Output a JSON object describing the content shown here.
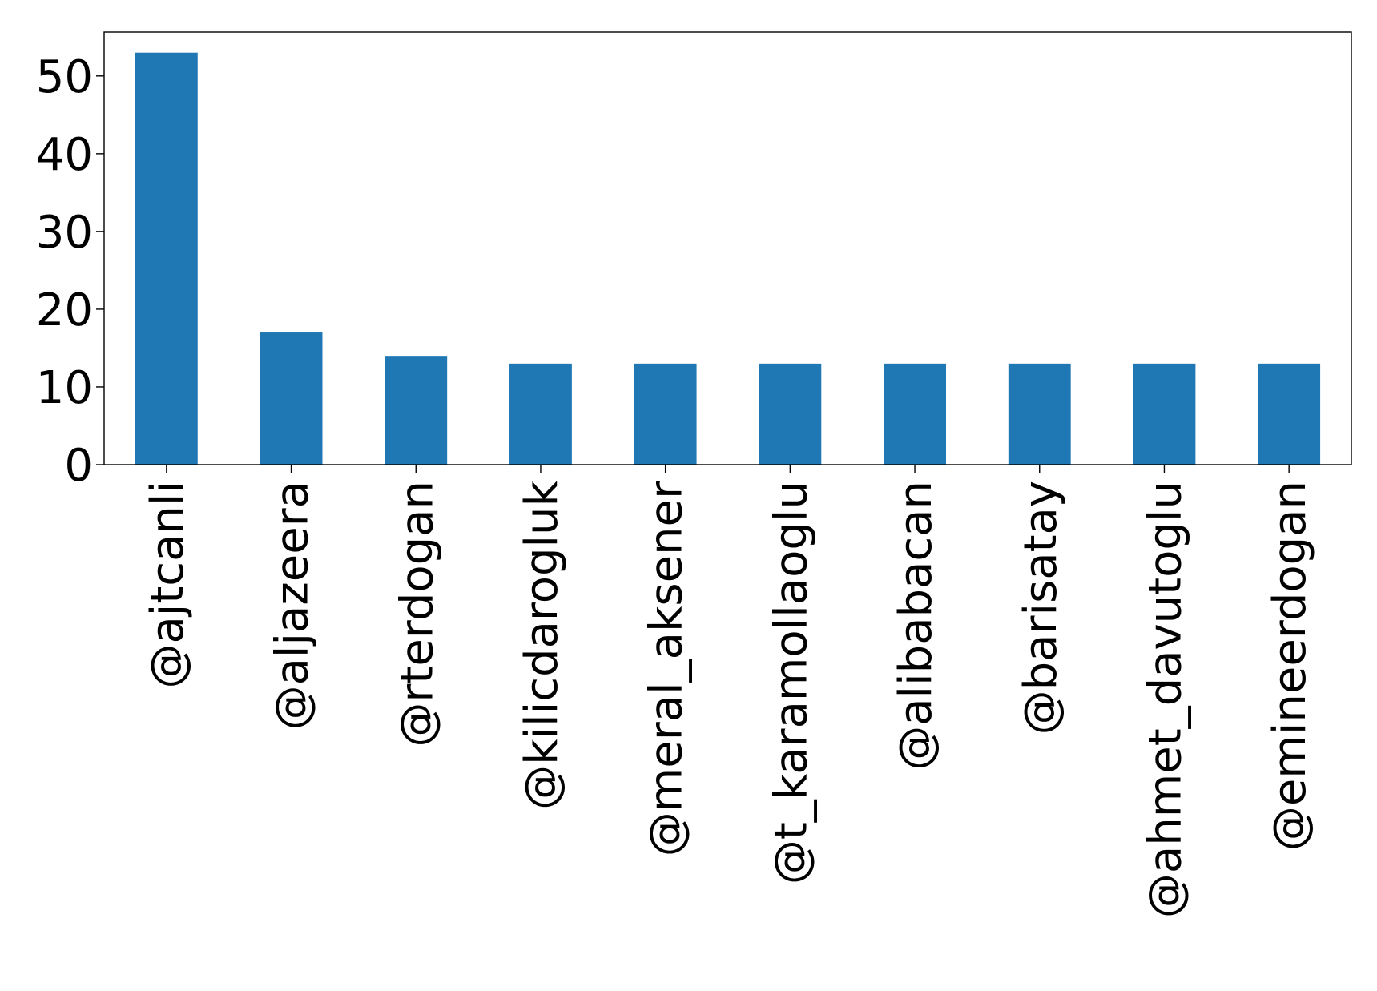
{
  "chart_data": {
    "type": "bar",
    "title": "",
    "xlabel": "",
    "ylabel": "",
    "categories": [
      "@ajtcanli",
      "@aljazeera",
      "@rterdogan",
      "@kilicdarogluk",
      "@meral_aksener",
      "@t_karamollaoglu",
      "@alibabacan",
      "@barisatay",
      "@ahmet_davutoglu",
      "@emineerdogan"
    ],
    "values": [
      53,
      17,
      14,
      13,
      13,
      13,
      13,
      13,
      13,
      13
    ],
    "ylim": [
      0,
      55.65
    ],
    "yticks": [
      0,
      10,
      20,
      30,
      40,
      50
    ],
    "bar_color": "#1f77b4",
    "grid": false,
    "legend": "none"
  }
}
